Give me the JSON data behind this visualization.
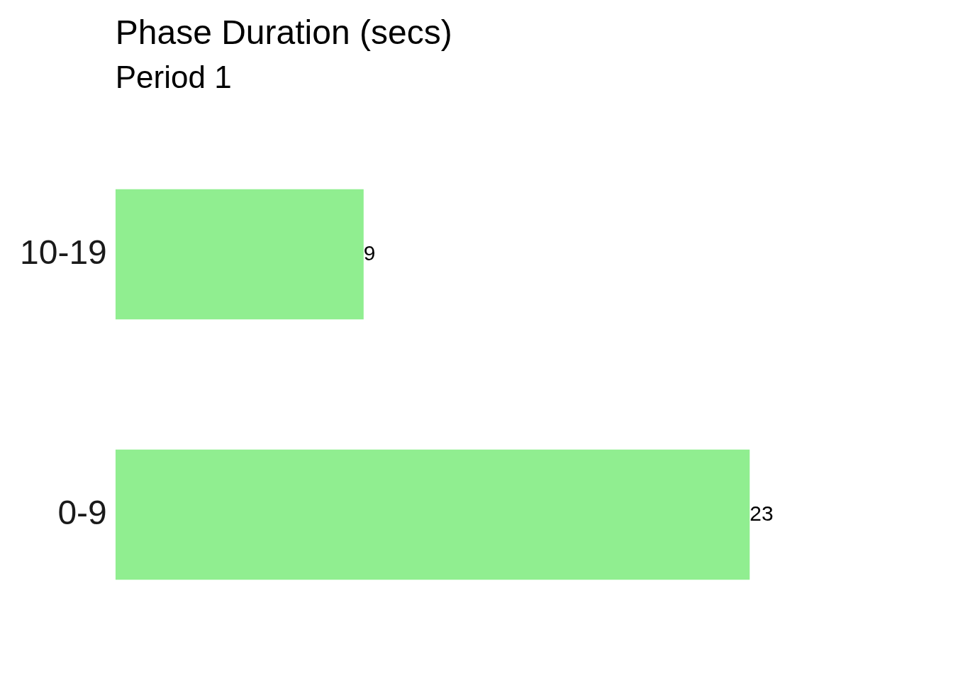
{
  "chart_data": {
    "type": "bar",
    "orientation": "horizontal",
    "title": "Phase Duration (secs)",
    "subtitle": "Period 1",
    "categories": [
      "10-19",
      "0-9"
    ],
    "values": [
      9,
      23
    ],
    "color": "#90ee90",
    "data_labels": true,
    "tick_labels": "y",
    "legend": false
  }
}
